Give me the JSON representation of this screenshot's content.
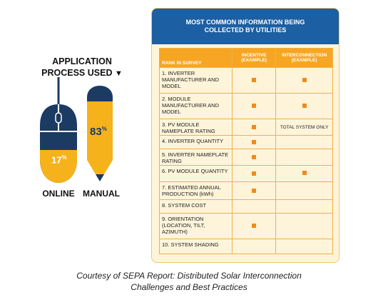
{
  "left": {
    "heading_line1": "APPLICATION",
    "heading_line2": "PROCESS USED",
    "heading_arrow": "▼",
    "online_pct": "17",
    "manual_pct": "83",
    "pct_sign": "%",
    "online_label": "ONLINE",
    "manual_label": "MANUAL",
    "colors": {
      "navy": "#1b3b63",
      "gold": "#f6b21b"
    }
  },
  "panel": {
    "title": "MOST COMMON INFORMATION BEING COLLECTED BY UTILITIES",
    "columns": [
      "RANK IN SURVEY",
      "INCENTIVE (EXAMPLE)",
      "INTERCONNECTION (EXAMPLE)"
    ],
    "rows": [
      {
        "item": "1. INVERTER MANUFACTURER AND MODEL",
        "incentive": "■",
        "interconnection": "■"
      },
      {
        "item": "2. MODULE MANUFACTURER AND MODEL",
        "incentive": "■",
        "interconnection": "■"
      },
      {
        "item": "3. PV MODULE NAMEPLATE RATING",
        "incentive": "■",
        "interconnection": "TOTAL SYSTEM ONLY"
      },
      {
        "item": "4. INVERTER QUANTITY",
        "incentive": "■",
        "interconnection": ""
      },
      {
        "item": "5. INVERTER NAMEPLATE RATING",
        "incentive": "■",
        "interconnection": ""
      },
      {
        "item": "6. PV MODULE QUANTITY",
        "incentive": "■",
        "interconnection": "■"
      },
      {
        "item": "7. ESTIMATED ANNUAL PRODUCTION (kWh)",
        "incentive": "■",
        "interconnection": ""
      },
      {
        "item": "8. SYSTEM COST",
        "incentive": "",
        "interconnection": ""
      },
      {
        "item": "9. ORIENTATION (LOCATION, TILT, AZIMUTH)",
        "incentive": "■",
        "interconnection": ""
      },
      {
        "item": "10. SYSTEM SHADING",
        "incentive": "",
        "interconnection": ""
      }
    ]
  },
  "caption_line1": "Courtesy of SEPA Report: Distributed Solar Interconnection",
  "caption_line2": "Challenges and Best Practices"
}
